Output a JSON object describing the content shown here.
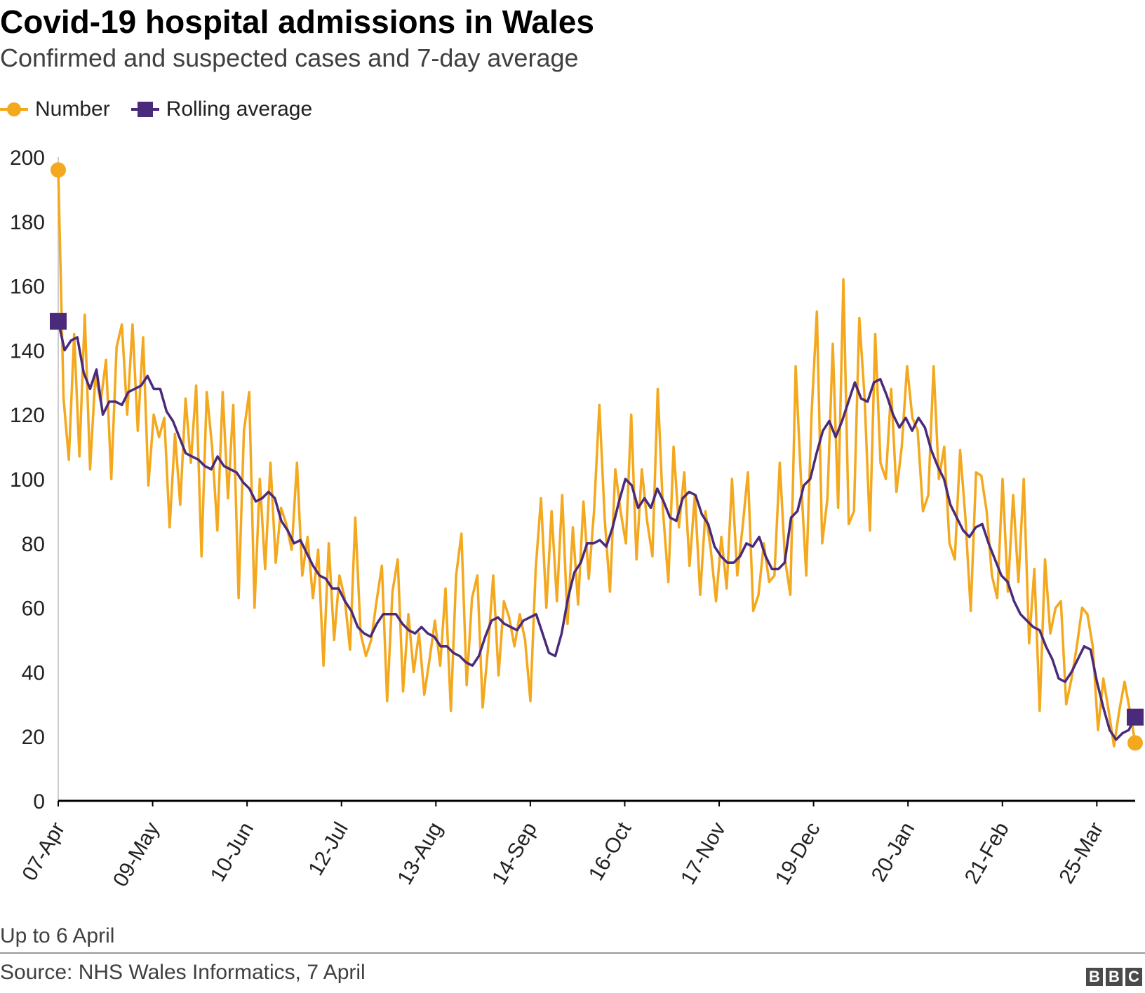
{
  "colors": {
    "number": "#f4a81d",
    "average": "#4a2a7a",
    "axis": "#000000",
    "tick": "#cccccc"
  },
  "chart_data": {
    "type": "line",
    "title": "Covid-19 hospital admissions in Wales",
    "subtitle": "Confirmed and suspected cases and 7-day average",
    "xlabel": "",
    "ylabel": "",
    "ylim": [
      0,
      200
    ],
    "yticks": [
      "0",
      "20",
      "40",
      "60",
      "80",
      "100",
      "120",
      "140",
      "160",
      "180",
      "200"
    ],
    "x_tick_labels": [
      "07-Apr",
      "09-May",
      "10-Jun",
      "12-Jul",
      "13-Aug",
      "14-Sep",
      "16-Oct",
      "17-Nov",
      "19-Dec",
      "20-Jan",
      "21-Feb",
      "25-Mar"
    ],
    "days_total": 365,
    "legend": [
      "Number",
      "Rolling average"
    ],
    "series": [
      {
        "name": "Number",
        "day_step": 2,
        "values": [
          196,
          125,
          106,
          145,
          107,
          151,
          103,
          132,
          124,
          137,
          100,
          141,
          148,
          120,
          148,
          115,
          144,
          98,
          120,
          113,
          119,
          85,
          114,
          92,
          125,
          105,
          129,
          76,
          127,
          110,
          84,
          127,
          94,
          123,
          63,
          115,
          127,
          60,
          100,
          72,
          105,
          74,
          91,
          86,
          78,
          105,
          70,
          82,
          63,
          78,
          42,
          80,
          50,
          70,
          63,
          47,
          88,
          52,
          45,
          50,
          62,
          73,
          31,
          65,
          75,
          34,
          58,
          40,
          52,
          33,
          44,
          56,
          42,
          66,
          28,
          70,
          83,
          36,
          63,
          70,
          29,
          47,
          70,
          39,
          62,
          57,
          48,
          58,
          50,
          31,
          72,
          94,
          60,
          90,
          62,
          95,
          55,
          85,
          61,
          93,
          69,
          90,
          123,
          88,
          65,
          103,
          90,
          80,
          120,
          75,
          103,
          87,
          76,
          128,
          90,
          68,
          110,
          85,
          102,
          73,
          95,
          64,
          90,
          78,
          62,
          82,
          66,
          100,
          70,
          85,
          102,
          59,
          64,
          80,
          68,
          70,
          105,
          75,
          64,
          135,
          100,
          70,
          120,
          152,
          80,
          94,
          142,
          91,
          162,
          86,
          90,
          150,
          125,
          84,
          145,
          105,
          100,
          128,
          96,
          110,
          135,
          119,
          115,
          90,
          95,
          135,
          100,
          110,
          80,
          75,
          109,
          88,
          59,
          102,
          101,
          90,
          70,
          63,
          100,
          65,
          95,
          68,
          100,
          49,
          72,
          28,
          75,
          52,
          60,
          62,
          30,
          38,
          48,
          60,
          58,
          48,
          22,
          38,
          28,
          17,
          28,
          37,
          28,
          18
        ]
      },
      {
        "name": "Rolling average",
        "day_step": 2,
        "values": [
          149,
          140,
          143,
          144,
          133,
          128,
          134,
          120,
          124,
          124,
          123,
          127,
          128,
          129,
          132,
          128,
          128,
          121,
          118,
          113,
          108,
          107,
          106,
          104,
          103,
          107,
          104,
          103,
          102,
          99,
          97,
          93,
          94,
          96,
          94,
          87,
          84,
          80,
          81,
          77,
          73,
          70,
          69,
          66,
          66,
          62,
          59,
          54,
          52,
          51,
          55,
          58,
          58,
          58,
          55,
          53,
          52,
          54,
          52,
          51,
          48,
          48,
          46,
          45,
          43,
          42,
          45,
          51,
          56,
          57,
          55,
          54,
          53,
          56,
          57,
          58,
          52,
          46,
          45,
          52,
          63,
          71,
          74,
          80,
          80,
          81,
          79,
          85,
          93,
          100,
          98,
          91,
          94,
          91,
          97,
          93,
          88,
          87,
          94,
          96,
          95,
          89,
          86,
          79,
          76,
          74,
          74,
          76,
          80,
          79,
          82,
          76,
          72,
          72,
          74,
          88,
          90,
          98,
          100,
          108,
          115,
          118,
          113,
          118,
          124,
          130,
          125,
          124,
          130,
          131,
          126,
          120,
          116,
          119,
          115,
          119,
          116,
          109,
          104,
          100,
          92,
          88,
          84,
          82,
          85,
          86,
          80,
          75,
          70,
          68,
          62,
          58,
          56,
          54,
          53,
          48,
          44,
          38,
          37,
          40,
          44,
          48,
          47,
          37,
          29,
          22,
          19,
          21,
          22,
          26
        ]
      }
    ]
  },
  "notes": {
    "footnote": "Up to 6 April",
    "source": "Source: NHS Wales Informatics, 7 April",
    "logo_letters": [
      "B",
      "B",
      "C"
    ]
  }
}
